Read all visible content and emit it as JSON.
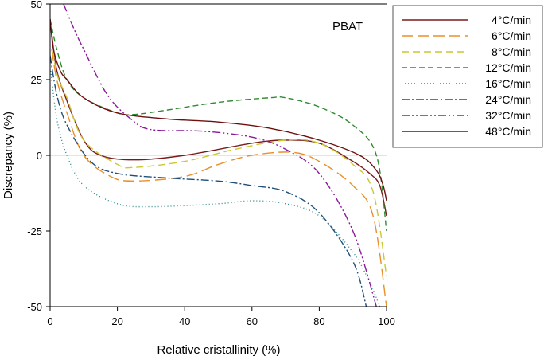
{
  "chart_data": {
    "type": "line",
    "annotation": "PBAT",
    "xlabel": "Relative cristallinity (%)",
    "ylabel": "Discrepancy (%)",
    "xlim": [
      0,
      100
    ],
    "ylim": [
      -50,
      50
    ],
    "xticks": [
      0,
      20,
      40,
      60,
      80,
      100
    ],
    "yticks": [
      50,
      25,
      0,
      -25,
      -50
    ],
    "grid": "horizontal line at 0",
    "legend_position": "right",
    "series": [
      {
        "name": "4°C/min",
        "color": "#7b1a1a",
        "dash": "",
        "x": [
          0.5,
          2,
          5,
          10,
          15,
          25,
          40,
          60,
          70,
          80,
          90,
          95,
          98,
          100
        ],
        "y": [
          40,
          28,
          18,
          5,
          0,
          -1.5,
          0,
          4,
          5,
          4,
          -2,
          -6,
          -10,
          -20
        ]
      },
      {
        "name": "6°C/min",
        "color": "#e8902a",
        "dash": "14 6",
        "x": [
          0.5,
          2,
          5,
          10,
          18,
          25,
          40,
          50,
          60,
          72,
          80,
          90,
          96,
          100
        ],
        "y": [
          35,
          25,
          14,
          0,
          -7,
          -8.5,
          -7,
          -3,
          0,
          1,
          -2,
          -10,
          -20,
          -50
        ]
      },
      {
        "name": "8°C/min",
        "color": "#c9c832",
        "dash": "9 5",
        "x": [
          0.5,
          2,
          5,
          10,
          20,
          25,
          40,
          55,
          70,
          80,
          90,
          96,
          100
        ],
        "y": [
          38,
          27,
          19,
          5,
          -3,
          -4,
          -2,
          2,
          5,
          4,
          -3,
          -12,
          -40
        ]
      },
      {
        "name": "12°C/min",
        "color": "#2e8b2e",
        "dash": "7 4",
        "x": [
          0,
          2,
          5,
          10,
          20,
          25,
          35,
          50,
          65,
          70,
          80,
          90,
          97,
          100
        ],
        "y": [
          45,
          35,
          25,
          19,
          14,
          13.5,
          15,
          17.5,
          19,
          19,
          16,
          10,
          0,
          -25
        ]
      },
      {
        "name": "16°C/min",
        "color": "#2a8a8a",
        "dash": "1 3",
        "x": [
          0,
          2,
          5,
          10,
          20,
          30,
          50,
          60,
          70,
          80,
          90,
          95,
          98
        ],
        "y": [
          30,
          12,
          0,
          -10,
          -16,
          -17,
          -16,
          -15,
          -16,
          -20,
          -32,
          -42,
          -50
        ]
      },
      {
        "name": "24°C/min",
        "color": "#1f4f7a",
        "dash": "10 3 2 3",
        "x": [
          0,
          2,
          5,
          12,
          20,
          35,
          50,
          60,
          70,
          80,
          90,
          94
        ],
        "y": [
          33,
          20,
          10,
          -2,
          -6,
          -7.5,
          -8.5,
          -10,
          -12,
          -19,
          -35,
          -50
        ]
      },
      {
        "name": "32°C/min",
        "color": "#8a1a9a",
        "dash": "10 3 2 3 2 3",
        "x": [
          4,
          7,
          10,
          17,
          24,
          30,
          45,
          60,
          70,
          80,
          90,
          97
        ],
        "y": [
          50,
          42,
          35,
          20,
          12,
          8.5,
          8,
          6,
          2,
          -6,
          -25,
          -50
        ]
      },
      {
        "name": "48°C/min",
        "color": "#6e1010",
        "dash": "",
        "x": [
          0,
          1,
          3,
          5,
          10,
          20,
          35,
          50,
          65,
          80,
          92,
          97,
          99,
          100
        ],
        "y": [
          45,
          35,
          28,
          25,
          19,
          14,
          12,
          11,
          9,
          5,
          0,
          -5,
          -10,
          -15
        ]
      }
    ]
  }
}
